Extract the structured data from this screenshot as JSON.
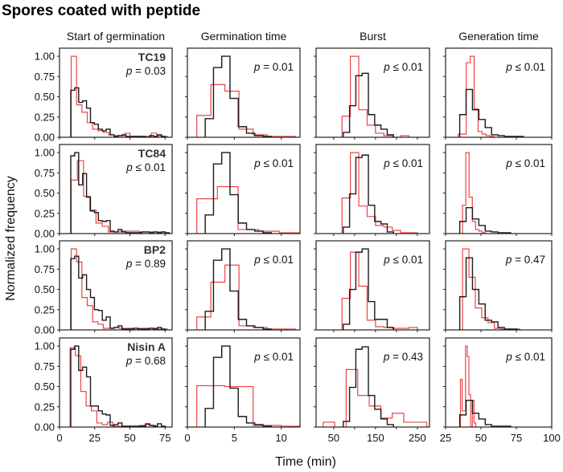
{
  "chart_data": {
    "type": "histogram-grid",
    "title": "Spores coated with peptide",
    "xlabel": "Time (min)",
    "ylabel": "Normalized frequency",
    "p_symbol": "p",
    "colors": {
      "control": "#1a1a1a",
      "peptide": "#ee4444"
    },
    "ylim": [
      0,
      1.1
    ],
    "yticks": [
      "0.00",
      "0.25",
      "0.50",
      "0.75",
      "1.00"
    ],
    "ytick_values": [
      0,
      0.25,
      0.5,
      0.75,
      1.0
    ],
    "columns": [
      {
        "title": "Start of germination",
        "xlim": [
          0,
          80
        ],
        "xticks": [
          0,
          25,
          50,
          75
        ],
        "xtick_labels": [
          "0",
          "25",
          "50",
          "75"
        ]
      },
      {
        "title": "Germination time",
        "xlim": [
          0,
          12
        ],
        "xticks": [
          0,
          5,
          10
        ],
        "xtick_labels": [
          "0",
          "5",
          "10"
        ]
      },
      {
        "title": "Burst",
        "xlim": [
          8,
          279
        ],
        "xticks": [
          50,
          100,
          150,
          200,
          250
        ],
        "xtick_labels": [
          "50",
          "",
          "150",
          "",
          "250"
        ]
      },
      {
        "title": "Generation time",
        "xlim": [
          25,
          100
        ],
        "xticks": [
          25,
          50,
          75,
          100
        ],
        "xtick_labels": [
          "25",
          "50",
          "75",
          "100"
        ]
      }
    ],
    "rows": [
      {
        "label": "TC19",
        "p_values": [
          "= 0.03",
          "= 0.01",
          "≤ 0.01",
          "≤ 0.01"
        ],
        "panels": [
          {
            "black": {
              "start": 8,
              "width": 2.8,
              "values": [
                0.58,
                0.61,
                0.43,
                0.45,
                0.36,
                0.18,
                0.16,
                0.1,
                0.08,
                0.1,
                0.03,
                0.01,
                0.02,
                0.03,
                0.01,
                0.01,
                0.01,
                0.01,
                0.01,
                0.0,
                0.02,
                0.01,
                0.03,
                0.01
              ]
            },
            "red": {
              "start": 8.3,
              "width": 3.8,
              "values": [
                1.0,
                0.4,
                0.31,
                0.18,
                0.1,
                0.08,
                0.06,
                0.03,
                0.02,
                0.02,
                0.05,
                0.01,
                0.01,
                0.01,
                0.01,
                0.05,
                0.02,
                0.01
              ]
            }
          },
          {
            "black": {
              "start": 1.9,
              "width": 0.88,
              "values": [
                0.23,
                0.86,
                1.0,
                0.48,
                0.13,
                0.05,
                0.02,
                0.01
              ]
            },
            "red": {
              "start": 1.0,
              "width": 1.5,
              "values": [
                0.27,
                0.65,
                0.57,
                0.1,
                0.03,
                0.01,
                0.01
              ]
            }
          },
          {
            "black": {
              "start": 73,
              "width": 15,
              "values": [
                0.06,
                0.39,
                0.76,
                0.79,
                0.28,
                0.15,
                0.1,
                0.03
              ]
            },
            "red": {
              "start": 70,
              "width": 20,
              "values": [
                0.26,
                1.0,
                0.34,
                0.15,
                0.05,
                0.02,
                0.0,
                0.02
              ]
            }
          },
          {
            "black": {
              "start": 35,
              "width": 4.5,
              "values": [
                0.28,
                0.59,
                0.34,
                0.22,
                0.12,
                0.03,
                0.02,
                0.01,
                0.01,
                0.01
              ]
            },
            "red": {
              "start": 34,
              "width": 2.8,
              "values": [
                0.04,
                0.04,
                0.92,
                1.0,
                0.35,
                0.07,
                0.04,
                0.02,
                0.01
              ]
            }
          }
        ]
      },
      {
        "label": "TC84",
        "p_values": [
          "≤ 0.01",
          "≤ 0.01",
          "≤ 0.01",
          "≤ 0.01"
        ],
        "panels": [
          {
            "black": {
              "start": 8,
              "width": 2.8,
              "values": [
                0.96,
                1.0,
                0.6,
                0.74,
                0.45,
                0.28,
                0.26,
                0.16,
                0.15,
                0.16,
                0.03,
                0.02,
                0.05,
                0.02,
                0.01,
                0.01,
                0.01,
                0.01,
                0.02,
                0.02,
                0.01,
                0.02,
                0.01,
                0.02,
                0.01
              ]
            },
            "red": {
              "start": 8.3,
              "width": 4.4,
              "values": [
                0.66,
                0.9,
                0.46,
                0.29,
                0.13,
                0.09,
                0.02,
                0.02,
                0.03,
                0.03,
                0.03,
                0.02,
                0.02,
                0.02,
                0.02
              ]
            }
          },
          {
            "black": {
              "start": 1.9,
              "width": 0.88,
              "values": [
                0.23,
                0.86,
                1.0,
                0.48,
                0.13,
                0.05,
                0.03,
                0.01
              ]
            },
            "red": {
              "start": 1.0,
              "width": 2.2,
              "values": [
                0.43,
                0.58,
                0.05,
                0.03,
                0.01
              ]
            }
          },
          {
            "black": {
              "start": 73,
              "width": 15,
              "values": [
                0.08,
                0.49,
                0.94,
                0.97,
                0.35,
                0.15,
                0.12,
                0.02
              ]
            },
            "red": {
              "start": 70,
              "width": 20,
              "values": [
                0.44,
                1.0,
                0.34,
                0.21,
                0.1,
                0.08,
                0.04,
                0.01,
                0.01
              ]
            }
          },
          {
            "black": {
              "start": 35,
              "width": 4.5,
              "values": [
                0.15,
                0.32,
                0.18,
                0.1,
                0.03,
                0.02,
                0.01,
                0.01
              ]
            },
            "red": {
              "start": 37,
              "width": 2.3,
              "values": [
                0.35,
                1.0,
                0.45,
                0.15,
                0.05,
                0.03,
                0.01
              ]
            }
          }
        ]
      },
      {
        "label": "BP2",
        "p_values": [
          "= 0.89",
          "≤ 0.01",
          "≤ 0.01",
          "= 0.47"
        ],
        "panels": [
          {
            "black": {
              "start": 8,
              "width": 2.8,
              "values": [
                0.88,
                0.91,
                0.64,
                0.68,
                0.5,
                0.4,
                0.25,
                0.24,
                0.12,
                0.16,
                0.02,
                0.03,
                0.05,
                0.01,
                0.01,
                0.01,
                0.02,
                0.01,
                0.01,
                0.01,
                0.02,
                0.01,
                0.03,
                0.01
              ]
            },
            "red": {
              "start": 8.3,
              "width": 3.8,
              "values": [
                1.0,
                0.84,
                0.4,
                0.3,
                0.1,
                0.07,
                0.02,
                0.02,
                0.03,
                0.02,
                0.02,
                0.02,
                0.02,
                0.02,
                0.02,
                0.02,
                0.01,
                0.01
              ]
            }
          },
          {
            "black": {
              "start": 1.9,
              "width": 0.88,
              "values": [
                0.23,
                0.86,
                1.0,
                0.48,
                0.13,
                0.05,
                0.03,
                0.01
              ]
            },
            "red": {
              "start": 1.0,
              "width": 1.5,
              "values": [
                0.16,
                0.59,
                0.8,
                0.05,
                0.03,
                0.01,
                0.01
              ]
            }
          },
          {
            "black": {
              "start": 73,
              "width": 15,
              "values": [
                0.07,
                0.5,
                0.96,
                1.0,
                0.35,
                0.13,
                0.13,
                0.03
              ]
            },
            "red": {
              "start": 70,
              "width": 20,
              "values": [
                0.39,
                0.96,
                0.54,
                0.12,
                0.04,
                0.03,
                0.02,
                0.02,
                0.03
              ]
            }
          },
          {
            "black": {
              "start": 35,
              "width": 4.5,
              "values": [
                0.41,
                0.89,
                0.5,
                0.32,
                0.12,
                0.1,
                0.03,
                0.01,
                0.01
              ]
            },
            "red": {
              "start": 37,
              "width": 4.5,
              "values": [
                1.0,
                0.65,
                0.27,
                0.15,
                0.09,
                0.02,
                0.01,
                0.01,
                0.01
              ]
            }
          }
        ]
      },
      {
        "label": "Nisin A",
        "p_values": [
          "= 0.68",
          "≤ 0.01",
          "= 0.43",
          "≤ 0.01"
        ],
        "panels": [
          {
            "black": {
              "start": 8,
              "width": 2.8,
              "values": [
                0.96,
                1.0,
                0.7,
                0.74,
                0.62,
                0.26,
                0.26,
                0.2,
                0.16,
                0.15,
                0.02,
                0.03,
                0.05,
                0.01,
                0.01,
                0.01,
                0.01,
                0.01,
                0.01,
                0.04,
                0.02,
                0.01,
                0.04,
                0.01
              ]
            },
            "red": {
              "start": 7.5,
              "width": 3.8,
              "values": [
                0.98,
                0.88,
                0.44,
                0.26,
                0.2,
                0.05,
                0.03,
                0.06,
                0.01,
                0.01,
                0.01,
                0.01,
                0.01,
                0.02,
                0.03,
                0.02
              ]
            }
          },
          {
            "black": {
              "start": 1.9,
              "width": 0.88,
              "values": [
                0.23,
                0.86,
                1.0,
                0.48,
                0.13,
                0.05,
                0.03,
                0.01
              ]
            },
            "red": {
              "start": 1.0,
              "width": 3.0,
              "values": [
                0.51,
                0.5,
                0.02,
                0.01,
                0.01
              ]
            }
          },
          {
            "black": {
              "start": 73,
              "width": 15,
              "values": [
                0.07,
                0.49,
                0.96,
                0.99,
                0.39,
                0.22,
                0.1,
                0.03
              ]
            },
            "red": {
              "start": 25,
              "width": 27.5,
              "values": [
                0.06,
                0.0,
                0.71,
                0.39,
                0.26,
                0.11,
                0.17,
                0.06,
                0.06
              ]
            }
          },
          {
            "black": {
              "start": 35,
              "width": 4.5,
              "values": [
                0.15,
                0.33,
                0.17,
                0.1,
                0.03,
                0.01,
                0.01,
                0.01
              ]
            },
            "red": {
              "start": 35.5,
              "width": 1.2,
              "values": [
                0.59,
                0.2,
                0.2,
                1.0,
                0.87,
                0.4,
                0.0,
                0.33,
                0.05
              ]
            }
          }
        ]
      }
    ]
  }
}
